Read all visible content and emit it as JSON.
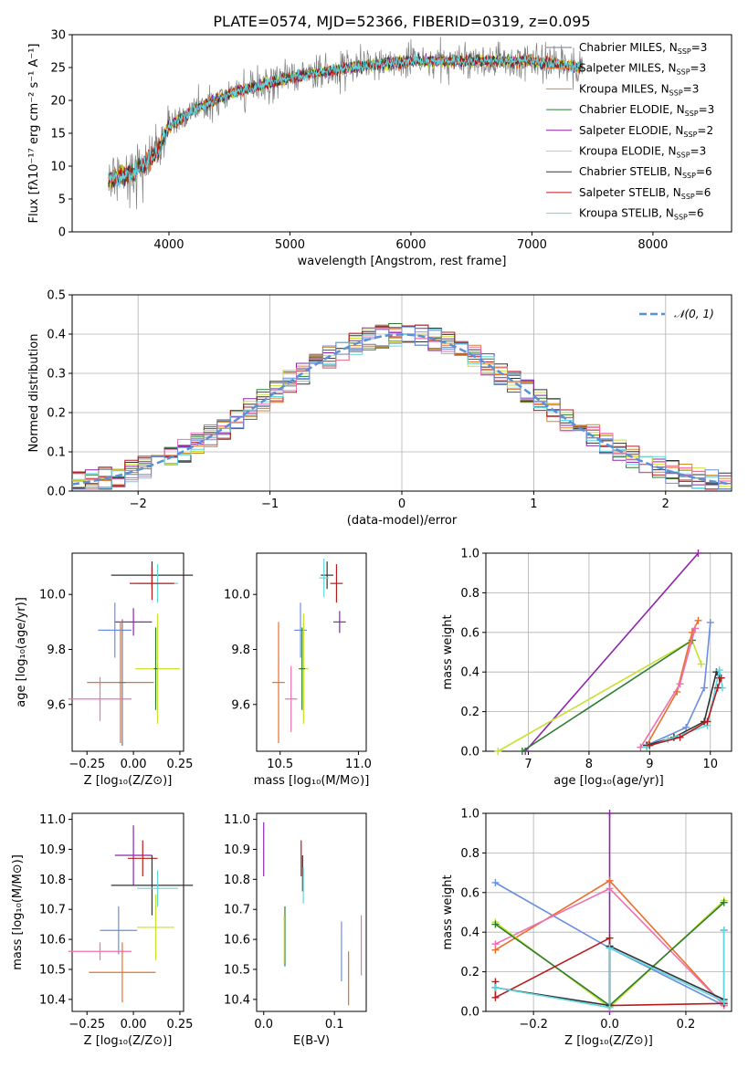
{
  "figure": {
    "title": "PLATE=0574, MJD=52366, FIBERID=0319, z=0.095"
  },
  "colors": {
    "chabrier_miles": "#6b7a8f",
    "salpeter_miles": "#e8702a",
    "kroupa_miles": "#d08a2c",
    "chabrier_elodie": "#2e7d32",
    "salpeter_elodie": "#8e24aa",
    "kroupa_elodie": "#c8e02e",
    "chabrier_stelib": "#333333",
    "salpeter_stelib": "#b71c1c",
    "kroupa_stelib": "#5fd6e0",
    "extra_pink": "#f06fb0",
    "extra_blue": "#6a8fe0",
    "normal": "#5b8fd6",
    "spectrum": "#7f7f7f",
    "grid": "#b0b0b0"
  },
  "chart_data": [
    {
      "id": "spectrum",
      "type": "line",
      "xlabel": "wavelength [Angstrom, rest frame]",
      "ylabel": "Flux [fλ10⁻¹⁷ erg cm⁻² s⁻¹ A⁻¹]",
      "xlim": [
        3200,
        8650
      ],
      "ylim": [
        0,
        30
      ],
      "xticks": [
        4000,
        5000,
        6000,
        7000,
        8000
      ],
      "yticks": [
        0,
        5,
        10,
        15,
        20,
        25,
        30
      ],
      "grid": false,
      "legend_position": "top-right",
      "x_range_data": [
        3500,
        7420
      ],
      "continuum": [
        {
          "x": 3500,
          "y": 8
        },
        {
          "x": 3700,
          "y": 9
        },
        {
          "x": 3900,
          "y": 12
        },
        {
          "x": 4000,
          "y": 16
        },
        {
          "x": 4200,
          "y": 18.5
        },
        {
          "x": 4500,
          "y": 21
        },
        {
          "x": 5000,
          "y": 23.5
        },
        {
          "x": 5500,
          "y": 25
        },
        {
          "x": 6000,
          "y": 26
        },
        {
          "x": 6500,
          "y": 26
        },
        {
          "x": 7000,
          "y": 26
        },
        {
          "x": 7420,
          "y": 25
        }
      ],
      "series": [
        {
          "name": "Chabrier MILES, N",
          "sub": "SSP",
          "suffix": "=3",
          "color_key": "chabrier_miles"
        },
        {
          "name": "Salpeter MILES, N",
          "sub": "SSP",
          "suffix": "=3",
          "color_key": "salpeter_miles"
        },
        {
          "name": "Kroupa MILES, N",
          "sub": "SSP",
          "suffix": "=3",
          "color_key": "kroupa_miles"
        },
        {
          "name": "Chabrier ELODIE, N",
          "sub": "SSP",
          "suffix": "=3",
          "color_key": "chabrier_elodie"
        },
        {
          "name": "Salpeter ELODIE, N",
          "sub": "SSP",
          "suffix": "=2",
          "color_key": "salpeter_elodie"
        },
        {
          "name": "Kroupa ELODIE, N",
          "sub": "SSP",
          "suffix": "=3",
          "color_key": "kroupa_elodie"
        },
        {
          "name": "Chabrier STELIB, N",
          "sub": "SSP",
          "suffix": "=6",
          "color_key": "chabrier_stelib"
        },
        {
          "name": "Salpeter STELIB, N",
          "sub": "SSP",
          "suffix": "=6",
          "color_key": "salpeter_stelib"
        },
        {
          "name": "Kroupa STELIB, N",
          "sub": "SSP",
          "suffix": "=6",
          "color_key": "kroupa_stelib"
        }
      ]
    },
    {
      "id": "residuals",
      "type": "histogram",
      "xlabel": "(data-model)/error",
      "ylabel": "Normed distribution",
      "xlim": [
        -2.5,
        2.5
      ],
      "ylim": [
        0,
        0.5
      ],
      "xticks": [
        -2,
        -1,
        0,
        1,
        2
      ],
      "yticks": [
        0.0,
        0.1,
        0.2,
        0.3,
        0.4,
        0.5
      ],
      "grid": true,
      "bin_width": 0.1,
      "legend_position": "top-right",
      "normal_label": "𝒩(0, 1)"
    },
    {
      "id": "age_Z",
      "type": "errorbar",
      "xlabel": "Z [log₁₀(Z/Z⊙)]",
      "ylabel": "age  [log₁₀(age/yr)]",
      "xlim": [
        -0.33,
        0.27
      ],
      "ylim": [
        9.43,
        10.15
      ],
      "xticks": [
        -0.25,
        0.0,
        0.25
      ],
      "yticks": [
        9.6,
        9.8,
        10.0
      ],
      "points": [
        {
          "x": 0.1,
          "y": 10.07,
          "xerr": 0.22,
          "yerr": 0.05,
          "color_key": "chabrier_stelib"
        },
        {
          "x": 0.13,
          "y": 10.04,
          "xerr": 0.11,
          "yerr": 0.07,
          "color_key": "kroupa_stelib"
        },
        {
          "x": 0.1,
          "y": 10.04,
          "xerr": 0.12,
          "yerr": 0.06,
          "color_key": "salpeter_stelib"
        },
        {
          "x": 0.0,
          "y": 9.9,
          "xerr": 0.1,
          "yerr": 0.05,
          "color_key": "salpeter_elodie"
        },
        {
          "x": -0.1,
          "y": 9.87,
          "xerr": 0.09,
          "yerr": 0.1,
          "color_key": "extra_blue"
        },
        {
          "x": 0.13,
          "y": 9.73,
          "xerr": 0.12,
          "yerr": 0.2,
          "color_key": "kroupa_elodie"
        },
        {
          "x": 0.12,
          "y": 9.73,
          "xerr": 0.01,
          "yerr": 0.15,
          "color_key": "chabrier_elodie"
        },
        {
          "x": -0.07,
          "y": 9.68,
          "xerr": 0.18,
          "yerr": 0.22,
          "color_key": "salpeter_miles"
        },
        {
          "x": -0.06,
          "y": 9.68,
          "xerr": 0.02,
          "yerr": 0.23,
          "color_key": "chabrier_miles"
        },
        {
          "x": -0.18,
          "y": 9.62,
          "xerr": 0.17,
          "yerr": 0.08,
          "color_key": "extra_pink"
        }
      ]
    },
    {
      "id": "age_mass",
      "type": "errorbar",
      "xlabel": "mass [log₁₀(M/M⊙)]",
      "ylabel": "",
      "xlim": [
        10.35,
        11.05
      ],
      "ylim": [
        9.43,
        10.15
      ],
      "xticks": [
        10.5,
        11.0
      ],
      "yticks": [
        9.6,
        9.8,
        10.0
      ],
      "points": [
        {
          "x": 10.8,
          "y": 10.07,
          "xerr": 0.04,
          "yerr": 0.05,
          "color_key": "chabrier_stelib"
        },
        {
          "x": 10.78,
          "y": 10.06,
          "xerr": 0.03,
          "yerr": 0.07,
          "color_key": "kroupa_stelib"
        },
        {
          "x": 10.86,
          "y": 10.04,
          "xerr": 0.04,
          "yerr": 0.07,
          "color_key": "salpeter_stelib"
        },
        {
          "x": 10.88,
          "y": 9.9,
          "xerr": 0.04,
          "yerr": 0.04,
          "color_key": "salpeter_elodie"
        },
        {
          "x": 10.63,
          "y": 9.87,
          "xerr": 0.04,
          "yerr": 0.1,
          "color_key": "extra_blue"
        },
        {
          "x": 10.65,
          "y": 9.73,
          "xerr": 0.03,
          "yerr": 0.2,
          "color_key": "kroupa_elodie"
        },
        {
          "x": 10.64,
          "y": 9.73,
          "xerr": 0.02,
          "yerr": 0.15,
          "color_key": "chabrier_elodie"
        },
        {
          "x": 10.49,
          "y": 9.68,
          "xerr": 0.04,
          "yerr": 0.22,
          "color_key": "salpeter_miles"
        },
        {
          "x": 10.57,
          "y": 9.62,
          "xerr": 0.04,
          "yerr": 0.12,
          "color_key": "extra_pink"
        }
      ]
    },
    {
      "id": "weight_age",
      "type": "line",
      "xlabel": "age  [log₁₀(age/yr)]",
      "ylabel": "mass weight",
      "xlim": [
        6.3,
        10.35
      ],
      "ylim": [
        0,
        1
      ],
      "xticks": [
        7,
        8,
        9,
        10
      ],
      "yticks": [
        0.0,
        0.2,
        0.4,
        0.6,
        0.8,
        1.0
      ],
      "grid": true,
      "series": [
        {
          "color_key": "salpeter_elodie",
          "x": [
            6.95,
            9.8
          ],
          "y": [
            0.0,
            1.0
          ]
        },
        {
          "color_key": "kroupa_elodie",
          "x": [
            6.5,
            9.7,
            9.85
          ],
          "y": [
            0.0,
            0.56,
            0.44
          ]
        },
        {
          "color_key": "chabrier_elodie",
          "x": [
            6.9,
            9.7
          ],
          "y": [
            0.0,
            0.56
          ]
        },
        {
          "color_key": "extra_blue",
          "x": [
            8.95,
            9.6,
            9.9,
            10.0
          ],
          "y": [
            0.03,
            0.12,
            0.32,
            0.65
          ]
        },
        {
          "color_key": "salpeter_miles",
          "x": [
            8.95,
            9.45,
            9.7,
            9.8
          ],
          "y": [
            0.03,
            0.3,
            0.6,
            0.66
          ]
        },
        {
          "color_key": "extra_pink",
          "x": [
            8.85,
            9.5,
            9.75
          ],
          "y": [
            0.02,
            0.34,
            0.62
          ]
        },
        {
          "color_key": "chabrier_stelib",
          "x": [
            8.95,
            9.4,
            9.9,
            10.1,
            10.15
          ],
          "y": [
            0.03,
            0.07,
            0.15,
            0.4,
            0.37
          ]
        },
        {
          "color_key": "kroupa_stelib",
          "x": [
            8.95,
            9.3,
            9.95,
            10.15,
            10.2
          ],
          "y": [
            0.02,
            0.06,
            0.13,
            0.41,
            0.32
          ]
        },
        {
          "color_key": "salpeter_stelib",
          "x": [
            9.0,
            9.5,
            9.95,
            10.12,
            10.18
          ],
          "y": [
            0.03,
            0.07,
            0.15,
            0.32,
            0.37
          ]
        }
      ]
    },
    {
      "id": "mass_Z",
      "type": "errorbar",
      "xlabel": "Z [log₁₀(Z/Z⊙)]",
      "ylabel": "mass [log₁₀(M/M⊙)]",
      "xlim": [
        -0.33,
        0.27
      ],
      "ylim": [
        10.36,
        11.02
      ],
      "xticks": [
        -0.25,
        0.0,
        0.25
      ],
      "yticks": [
        10.4,
        10.5,
        10.6,
        10.7,
        10.8,
        10.9,
        11.0
      ],
      "points": [
        {
          "x": 0.0,
          "y": 10.88,
          "xerr": 0.1,
          "yerr": 0.1,
          "color_key": "salpeter_elodie"
        },
        {
          "x": 0.05,
          "y": 10.87,
          "xerr": 0.08,
          "yerr": 0.06,
          "color_key": "salpeter_stelib"
        },
        {
          "x": 0.1,
          "y": 10.78,
          "xerr": 0.22,
          "yerr": 0.1,
          "color_key": "chabrier_stelib"
        },
        {
          "x": 0.13,
          "y": 10.77,
          "xerr": 0.11,
          "yerr": 0.06,
          "color_key": "kroupa_stelib"
        },
        {
          "x": 0.12,
          "y": 10.64,
          "xerr": 0.1,
          "yerr": 0.11,
          "color_key": "kroupa_elodie"
        },
        {
          "x": -0.08,
          "y": 10.63,
          "xerr": 0.1,
          "yerr": 0.08,
          "color_key": "extra_blue"
        },
        {
          "x": -0.18,
          "y": 10.56,
          "xerr": 0.17,
          "yerr": 0.03,
          "color_key": "extra_pink"
        },
        {
          "x": -0.06,
          "y": 10.49,
          "xerr": 0.18,
          "yerr": 0.1,
          "color_key": "salpeter_miles"
        }
      ]
    },
    {
      "id": "mass_ebv",
      "type": "errorbar",
      "xlabel": "E(B-V)",
      "ylabel": "",
      "xlim": [
        -0.01,
        0.145
      ],
      "ylim": [
        10.36,
        11.02
      ],
      "xticks": [
        0.0,
        0.1
      ],
      "yticks": [
        10.4,
        10.5,
        10.6,
        10.7,
        10.8,
        10.9,
        11.0
      ],
      "points": [
        {
          "x": 0.0,
          "y": 10.9,
          "yerr": 0.09,
          "color_key": "salpeter_elodie"
        },
        {
          "x": 0.03,
          "y": 10.61,
          "yerr": 0.1,
          "color_key": "chabrier_elodie"
        },
        {
          "x": 0.029,
          "y": 10.6,
          "yerr": 0.08,
          "color_key": "kroupa_elodie"
        },
        {
          "x": 0.053,
          "y": 10.87,
          "yerr": 0.06,
          "color_key": "salpeter_stelib"
        },
        {
          "x": 0.055,
          "y": 10.82,
          "yerr": 0.06,
          "color_key": "chabrier_stelib"
        },
        {
          "x": 0.056,
          "y": 10.78,
          "yerr": 0.06,
          "color_key": "kroupa_stelib"
        },
        {
          "x": 0.11,
          "y": 10.56,
          "yerr": 0.1,
          "color_key": "extra_blue"
        },
        {
          "x": 0.12,
          "y": 10.47,
          "yerr": 0.09,
          "color_key": "salpeter_miles"
        },
        {
          "x": 0.138,
          "y": 10.58,
          "yerr": 0.1,
          "color_key": "extra_pink"
        }
      ]
    },
    {
      "id": "weight_Z",
      "type": "line",
      "xlabel": "Z [log₁₀(Z/Z⊙)]",
      "ylabel": "mass weight",
      "xlim": [
        -0.325,
        0.32
      ],
      "ylim": [
        0,
        1
      ],
      "xticks": [
        -0.2,
        0.0,
        0.2
      ],
      "yticks": [
        0.0,
        0.2,
        0.4,
        0.6,
        0.8,
        1.0
      ],
      "grid": true,
      "series": [
        {
          "color_key": "salpeter_elodie",
          "x": [
            0.0,
            0.0
          ],
          "y": [
            0.0,
            1.0
          ]
        },
        {
          "color_key": "extra_blue",
          "x": [
            -0.3,
            0.0,
            0.3,
            0.3
          ],
          "y": [
            0.65,
            0.32,
            0.03,
            0.04
          ]
        },
        {
          "color_key": "salpeter_miles",
          "x": [
            -0.3,
            0.0,
            0.3
          ],
          "y": [
            0.31,
            0.66,
            0.03
          ]
        },
        {
          "color_key": "extra_pink",
          "x": [
            -0.3,
            0.0,
            0.3
          ],
          "y": [
            0.34,
            0.62,
            0.03
          ]
        },
        {
          "color_key": "kroupa_elodie",
          "x": [
            -0.3,
            0.0,
            0.3,
            0.3
          ],
          "y": [
            0.45,
            0.02,
            0.56,
            0.55
          ]
        },
        {
          "color_key": "chabrier_elodie",
          "x": [
            -0.3,
            0.0,
            0.3
          ],
          "y": [
            0.44,
            0.03,
            0.55
          ]
        },
        {
          "color_key": "salpeter_stelib",
          "x": [
            -0.3,
            -0.3,
            0.0,
            0.0,
            0.3
          ],
          "y": [
            0.15,
            0.07,
            0.37,
            0.03,
            0.04
          ]
        },
        {
          "color_key": "chabrier_stelib",
          "x": [
            -0.3,
            0.0,
            0.0,
            0.3,
            0.3
          ],
          "y": [
            0.12,
            0.03,
            0.33,
            0.06,
            0.41
          ]
        },
        {
          "color_key": "kroupa_stelib",
          "x": [
            -0.3,
            0.0,
            0.0,
            0.3,
            0.3
          ],
          "y": [
            0.12,
            0.02,
            0.32,
            0.05,
            0.41
          ]
        }
      ]
    }
  ]
}
